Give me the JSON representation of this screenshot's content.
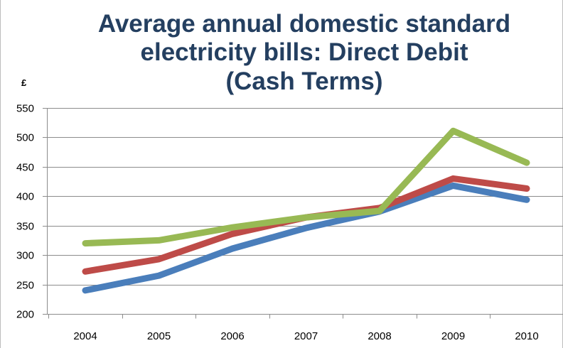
{
  "chart_data": {
    "type": "line",
    "title": [
      "Average annual domestic standard",
      "electricity bills: Direct Debit",
      "(Cash Terms)"
    ],
    "unit_label": "£",
    "categories": [
      "2004",
      "2005",
      "2006",
      "2007",
      "2008",
      "2009",
      "2010"
    ],
    "ylim": [
      200,
      550
    ],
    "yticks": [
      200,
      250,
      300,
      350,
      400,
      450,
      500,
      550
    ],
    "grid": true,
    "legend": "none",
    "series": [
      {
        "color": "#4a7ebb",
        "values": [
          240,
          265,
          311,
          346,
          374,
          418,
          394
        ]
      },
      {
        "color": "#be4b48",
        "values": [
          272,
          293,
          336,
          364,
          380,
          430,
          413
        ]
      },
      {
        "color": "#98b954",
        "values": [
          320,
          325,
          347,
          364,
          375,
          511,
          457
        ]
      }
    ]
  }
}
